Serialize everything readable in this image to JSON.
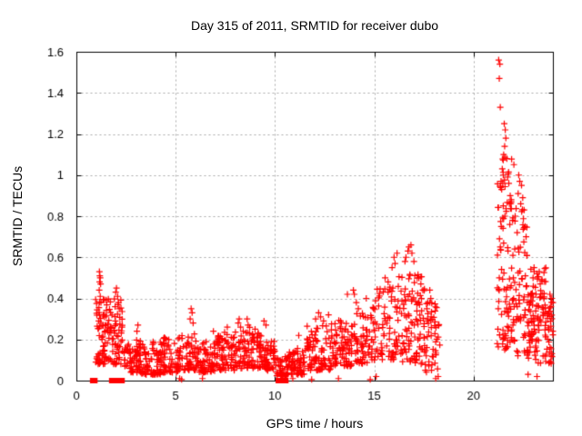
{
  "chart_data": {
    "type": "scatter",
    "title": "Day 315 of 2011, SRMTID for receiver dubo",
    "xlabel": "GPS time / hours",
    "ylabel": "SRMTID / TECUs",
    "xlim": [
      0,
      24
    ],
    "ylim": [
      0,
      1.6
    ],
    "xticks": [
      0,
      5,
      10,
      15,
      20
    ],
    "yticks": [
      0,
      0.2,
      0.4,
      0.6,
      0.8,
      1,
      1.2,
      1.4,
      1.6
    ],
    "grid": true,
    "legend": "none",
    "axis_color": "#000000",
    "grid_color": "#a8a8a8",
    "text_color": "#000000",
    "marker": {
      "shape": "plus",
      "color": "#ff0000",
      "size": 7
    },
    "zero_marker": {
      "shape": "filled-square",
      "color": "#ff0000",
      "size": 6
    },
    "zero_points_x": [
      0.82,
      0.93,
      1.78,
      2.0,
      2.1,
      2.3,
      10.17,
      10.3,
      10.45,
      10.55
    ],
    "points": [
      [
        21.27,
        1.56
      ],
      [
        21.33,
        1.54
      ],
      [
        21.3,
        1.47
      ],
      [
        21.35,
        1.33
      ],
      [
        21.55,
        1.25
      ],
      [
        21.6,
        1.22
      ],
      [
        21.63,
        1.18
      ],
      [
        21.57,
        1.14
      ],
      [
        21.52,
        1.1
      ],
      [
        21.68,
        1.08
      ],
      [
        21.45,
        1.03
      ],
      [
        21.5,
        1.0
      ],
      [
        21.72,
        0.99
      ],
      [
        21.78,
        0.96
      ],
      [
        21.42,
        0.93
      ],
      [
        21.85,
        0.9
      ],
      [
        21.9,
        0.88
      ],
      [
        22.28,
        1.0
      ],
      [
        22.33,
        0.97
      ],
      [
        22.42,
        0.95
      ],
      [
        22.25,
        0.91
      ],
      [
        22.48,
        0.89
      ],
      [
        22.38,
        0.86
      ],
      [
        22.55,
        0.83
      ],
      [
        21.5,
        0.85
      ],
      [
        21.58,
        0.8
      ],
      [
        21.83,
        0.76
      ],
      [
        21.97,
        0.78
      ],
      [
        22.1,
        0.8
      ],
      [
        22.6,
        0.75
      ],
      [
        22.65,
        0.7
      ],
      [
        22.2,
        0.72
      ],
      [
        21.2,
        0.18
      ],
      [
        21.23,
        0.25
      ],
      [
        21.25,
        0.35
      ],
      [
        21.3,
        0.5
      ],
      [
        21.35,
        0.65
      ],
      [
        21.4,
        0.75
      ],
      [
        1.16,
        0.53
      ],
      [
        1.18,
        0.51
      ],
      [
        1.2,
        0.5
      ],
      [
        1.17,
        0.48
      ],
      [
        1.22,
        0.47
      ],
      [
        1.15,
        0.44
      ],
      [
        1.2,
        0.41
      ],
      [
        1.24,
        0.38
      ],
      [
        2.02,
        0.45
      ],
      [
        1.98,
        0.43
      ],
      [
        2.08,
        0.41
      ],
      [
        2.12,
        0.38
      ],
      [
        1.95,
        0.36
      ],
      [
        3.1,
        0.27
      ],
      [
        3.05,
        0.24
      ],
      [
        5.78,
        0.35
      ],
      [
        5.83,
        0.33
      ],
      [
        5.73,
        0.3
      ],
      [
        5.88,
        0.28
      ],
      [
        6.9,
        0.24
      ],
      [
        7.6,
        0.26
      ],
      [
        8.15,
        0.28
      ],
      [
        8.2,
        0.3
      ],
      [
        8.27,
        0.26
      ],
      [
        8.6,
        0.3
      ],
      [
        8.65,
        0.27
      ],
      [
        9.45,
        0.29
      ],
      [
        9.55,
        0.27
      ],
      [
        9.0,
        0.25
      ],
      [
        11.2,
        0.22
      ],
      [
        12.05,
        0.3
      ],
      [
        12.3,
        0.31
      ],
      [
        12.45,
        0.29
      ],
      [
        12.7,
        0.32
      ],
      [
        12.2,
        0.33
      ],
      [
        13.65,
        0.42
      ],
      [
        13.95,
        0.44
      ],
      [
        14.0,
        0.42
      ],
      [
        14.1,
        0.38
      ],
      [
        14.2,
        0.35
      ],
      [
        14.6,
        0.4
      ],
      [
        15.55,
        0.5
      ],
      [
        15.7,
        0.48
      ],
      [
        15.9,
        0.55
      ],
      [
        16.0,
        0.6
      ],
      [
        16.05,
        0.57
      ],
      [
        16.15,
        0.62
      ],
      [
        16.55,
        0.58
      ],
      [
        16.6,
        0.6
      ],
      [
        16.7,
        0.63
      ],
      [
        16.75,
        0.65
      ],
      [
        16.85,
        0.66
      ],
      [
        16.9,
        0.62
      ],
      [
        17.0,
        0.58
      ],
      [
        17.25,
        0.5
      ],
      [
        17.35,
        0.47
      ],
      [
        17.45,
        0.44
      ],
      [
        17.8,
        0.44
      ],
      [
        17.85,
        0.4
      ],
      [
        23.05,
        0.55
      ],
      [
        23.2,
        0.52
      ],
      [
        23.0,
        0.5
      ],
      [
        23.85,
        0.42
      ],
      [
        23.9,
        0.36
      ],
      [
        23.95,
        0.4
      ],
      [
        24.0,
        0.38
      ],
      [
        5.2,
        0.01
      ],
      [
        5.3,
        0.005
      ],
      [
        6.35,
        0.01
      ],
      [
        10.9,
        0.01
      ],
      [
        11.85,
        0.005
      ],
      [
        13.2,
        0.01
      ],
      [
        14.8,
        0.005
      ],
      [
        15.1,
        0.02
      ],
      [
        18.1,
        0.01
      ],
      [
        18.22,
        0.02
      ],
      [
        22.75,
        0.03
      ],
      [
        23.2,
        0.02
      ]
    ],
    "clusters": [
      {
        "x_min": 0.95,
        "x_max": 1.5,
        "y_min": 0.08,
        "y_max": 0.4,
        "count": 60,
        "bias": 1.5
      },
      {
        "x_min": 1.5,
        "x_max": 2.35,
        "y_min": 0.08,
        "y_max": 0.42,
        "count": 75,
        "bias": 1.5
      },
      {
        "x_min": 2.35,
        "x_max": 2.7,
        "y_min": 0.05,
        "y_max": 0.18,
        "count": 18,
        "bias": 1.4
      },
      {
        "x_min": 2.7,
        "x_max": 3.25,
        "y_min": 0.04,
        "y_max": 0.2,
        "count": 55,
        "bias": 1.6
      },
      {
        "x_min": 3.25,
        "x_max": 4.25,
        "y_min": 0.03,
        "y_max": 0.19,
        "count": 75,
        "bias": 1.7
      },
      {
        "x_min": 4.25,
        "x_max": 5.25,
        "y_min": 0.04,
        "y_max": 0.21,
        "count": 75,
        "bias": 1.7
      },
      {
        "x_min": 5.3,
        "x_max": 6.15,
        "y_min": 0.05,
        "y_max": 0.24,
        "count": 60,
        "bias": 1.7
      },
      {
        "x_min": 6.15,
        "x_max": 7.1,
        "y_min": 0.04,
        "y_max": 0.2,
        "count": 70,
        "bias": 1.6
      },
      {
        "x_min": 7.1,
        "x_max": 8.3,
        "y_min": 0.05,
        "y_max": 0.24,
        "count": 90,
        "bias": 1.6
      },
      {
        "x_min": 8.3,
        "x_max": 9.35,
        "y_min": 0.06,
        "y_max": 0.26,
        "count": 85,
        "bias": 1.6
      },
      {
        "x_min": 9.35,
        "x_max": 10.05,
        "y_min": 0.05,
        "y_max": 0.2,
        "count": 60,
        "bias": 1.6
      },
      {
        "x_min": 10.05,
        "x_max": 10.7,
        "y_min": 0.02,
        "y_max": 0.12,
        "count": 45,
        "bias": 1.4
      },
      {
        "x_min": 10.7,
        "x_max": 11.6,
        "y_min": 0.03,
        "y_max": 0.16,
        "count": 65,
        "bias": 1.5
      },
      {
        "x_min": 11.6,
        "x_max": 12.8,
        "y_min": 0.05,
        "y_max": 0.27,
        "count": 90,
        "bias": 1.6
      },
      {
        "x_min": 12.8,
        "x_max": 13.85,
        "y_min": 0.07,
        "y_max": 0.3,
        "count": 80,
        "bias": 1.5
      },
      {
        "x_min": 13.85,
        "x_max": 14.9,
        "y_min": 0.08,
        "y_max": 0.33,
        "count": 70,
        "bias": 1.4
      },
      {
        "x_min": 14.9,
        "x_max": 16.25,
        "y_min": 0.1,
        "y_max": 0.47,
        "count": 85,
        "bias": 1.5
      },
      {
        "x_min": 16.25,
        "x_max": 17.55,
        "y_min": 0.08,
        "y_max": 0.52,
        "count": 100,
        "bias": 1.3
      },
      {
        "x_min": 17.55,
        "x_max": 18.35,
        "y_min": 0.04,
        "y_max": 0.38,
        "count": 50,
        "bias": 1.3
      },
      {
        "x_min": 21.2,
        "x_max": 21.5,
        "y_min": 0.15,
        "y_max": 1.05,
        "count": 25,
        "bias": 1.0
      },
      {
        "x_min": 21.45,
        "x_max": 22.05,
        "y_min": 0.15,
        "y_max": 1.1,
        "count": 70,
        "bias": 1.25
      },
      {
        "x_min": 22.05,
        "x_max": 22.7,
        "y_min": 0.12,
        "y_max": 0.88,
        "count": 55,
        "bias": 1.25
      },
      {
        "x_min": 22.7,
        "x_max": 23.65,
        "y_min": 0.08,
        "y_max": 0.55,
        "count": 100,
        "bias": 1.2
      },
      {
        "x_min": 23.6,
        "x_max": 24.0,
        "y_min": 0.08,
        "y_max": 0.4,
        "count": 40,
        "bias": 1.1
      }
    ]
  }
}
